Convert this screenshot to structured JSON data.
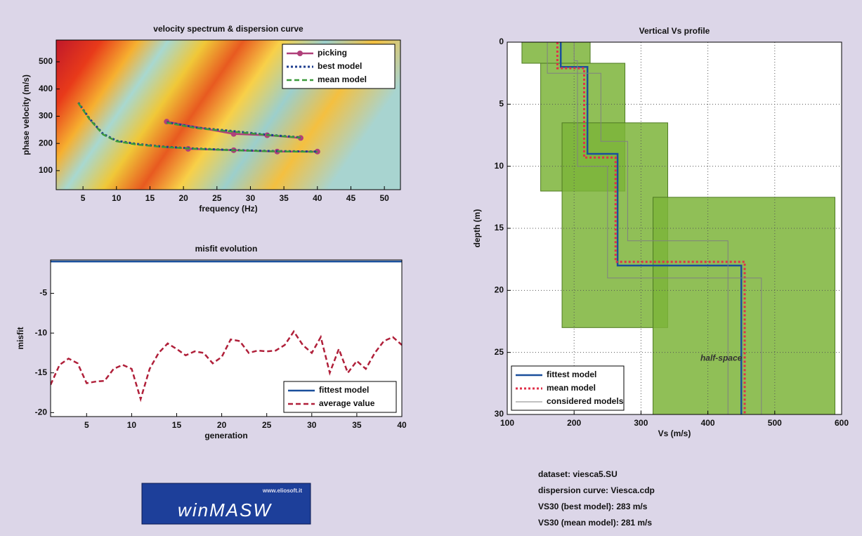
{
  "chart_data": [
    {
      "type": "line",
      "title": "velocity spectrum & dispersion curve",
      "xlabel": "frequency (Hz)",
      "ylabel": "phase velocity (m/s)",
      "xlim": [
        1,
        52.4
      ],
      "xticks": [
        5,
        10,
        15,
        20,
        25,
        30,
        35,
        40,
        45,
        50
      ],
      "ylim": [
        30,
        580
      ],
      "yticks": [
        100,
        200,
        300,
        400,
        500
      ],
      "grid": false,
      "legend": "upper right",
      "series": [
        {
          "name": "picking",
          "color": "#b0407a",
          "linestyle": "solid",
          "marker": "circle",
          "x": [
            17.5,
            27.5,
            32.5,
            37.5,
            null,
            20.7,
            27.5,
            34,
            40
          ],
          "values": [
            280,
            235,
            230,
            220,
            null,
            180,
            175,
            170,
            170
          ]
        },
        {
          "name": "best model",
          "color": "#1f3f8f",
          "linestyle": "dotted",
          "marker": null,
          "x": [
            17.5,
            22,
            27.5,
            32.5,
            37.5,
            null,
            4.3,
            6,
            8,
            10,
            13,
            17,
            21,
            27,
            33,
            40
          ],
          "values": [
            278,
            258,
            245,
            232,
            222,
            null,
            350,
            290,
            235,
            210,
            198,
            188,
            182,
            176,
            172,
            170
          ]
        },
        {
          "name": "mean model",
          "color": "#3a9a3a",
          "linestyle": "dashed",
          "marker": null,
          "x": [
            17.5,
            22,
            27.5,
            32.5,
            37.5,
            null,
            4.3,
            6,
            8,
            10,
            13,
            17,
            21,
            27,
            33,
            40
          ],
          "values": [
            276,
            256,
            243,
            231,
            221,
            null,
            348,
            288,
            233,
            208,
            196,
            187,
            181,
            175,
            171,
            169
          ]
        }
      ]
    },
    {
      "type": "line",
      "title": "misfit evolution",
      "xlabel": "generation",
      "ylabel": "misfit",
      "xlim": [
        1,
        40
      ],
      "xticks": [
        5,
        10,
        15,
        20,
        25,
        30,
        35,
        40
      ],
      "ylim": [
        -20.5,
        -0.8
      ],
      "yticks": [
        -5,
        -10,
        -15,
        -20
      ],
      "grid": false,
      "legend": "lower right",
      "x": [
        1,
        2,
        3,
        4,
        5,
        6,
        7,
        8,
        9,
        10,
        11,
        12,
        13,
        14,
        15,
        16,
        17,
        18,
        19,
        20,
        21,
        22,
        23,
        24,
        25,
        26,
        27,
        28,
        29,
        30,
        31,
        32,
        33,
        34,
        35,
        36,
        37,
        38,
        39,
        40
      ],
      "series": [
        {
          "name": "fittest model",
          "color": "#1a4f9c",
          "linestyle": "solid",
          "marker": null,
          "values": [
            -1,
            -1,
            -1,
            -1,
            -1,
            -1,
            -1,
            -1,
            -1,
            -1,
            -1,
            -1,
            -1,
            -1,
            -1,
            -1,
            -1,
            -1,
            -1,
            -1,
            -1,
            -1,
            -1,
            -1,
            -1,
            -1,
            -1,
            -1,
            -1,
            -1,
            -1,
            -1,
            -1,
            -1,
            -1,
            -1,
            -1,
            -1,
            -1,
            -1
          ]
        },
        {
          "name": "average value",
          "color": "#b0203a",
          "linestyle": "dashed",
          "marker": null,
          "values": [
            -16.5,
            -14,
            -13.2,
            -13.8,
            -16.3,
            -16.1,
            -16,
            -14.5,
            -14,
            -14.5,
            -18.3,
            -14.5,
            -12.5,
            -11.3,
            -12,
            -12.8,
            -12.3,
            -12.5,
            -13.8,
            -13,
            -10.8,
            -11,
            -12.5,
            -12.2,
            -12.3,
            -12.2,
            -11.5,
            -9.8,
            -11.5,
            -12.5,
            -10.5,
            -15,
            -12,
            -15,
            -13.5,
            -14.5,
            -12.5,
            -11,
            -10.5,
            -11.5
          ]
        }
      ]
    },
    {
      "type": "line",
      "title": "Vertical Vs profile",
      "xlabel": "Vs (m/s)",
      "ylabel": "depth (m)",
      "xlim": [
        100,
        600
      ],
      "xticks": [
        100,
        200,
        300,
        400,
        500,
        600
      ],
      "ylim": [
        0,
        30
      ],
      "yticks": [
        0,
        5,
        10,
        15,
        20,
        25,
        30
      ],
      "y_inverted": true,
      "grid": true,
      "legend": "lower left",
      "search_bounds": [
        {
          "vs": [
            122,
            224
          ],
          "depth": [
            0,
            1.7
          ]
        },
        {
          "vs": [
            150,
            276
          ],
          "depth": [
            1.7,
            12
          ]
        },
        {
          "vs": [
            182,
            340
          ],
          "depth": [
            6.5,
            23
          ]
        },
        {
          "vs": [
            318,
            590
          ],
          "depth": [
            12.5,
            30
          ]
        }
      ],
      "annotations": [
        {
          "text": "half-space",
          "x": 420,
          "y": 25.5
        }
      ],
      "series": [
        {
          "name": "fittest model",
          "color": "#1a4f9c",
          "linestyle": "solid",
          "marker": null,
          "x": [
            180,
            180,
            220,
            220,
            265,
            265,
            450,
            450
          ],
          "values": [
            0,
            2,
            2,
            9,
            9,
            18,
            18,
            30
          ]
        },
        {
          "name": "mean model",
          "color": "#e0304a",
          "linestyle": "dotted",
          "marker": null,
          "x": [
            175,
            175,
            215,
            215,
            262,
            262,
            455,
            455
          ],
          "values": [
            0,
            2.1,
            2.1,
            9.3,
            9.3,
            17.7,
            17.7,
            30
          ]
        },
        {
          "name": "considered models",
          "color": "#808080",
          "linestyle": "thin",
          "marker": null,
          "x": [
            160,
            160,
            240,
            240,
            280,
            280,
            430,
            430,
            null,
            200,
            200,
            205,
            205,
            250,
            250,
            480,
            480
          ],
          "values": [
            0,
            2.5,
            2.5,
            8,
            8,
            16,
            16,
            30,
            null,
            0,
            1.5,
            1.5,
            10,
            10,
            19,
            19,
            30
          ]
        }
      ]
    }
  ],
  "info": [
    "dataset: viesca5.SU",
    "dispersion curve: Viesca.cdp",
    "VS30 (best model): 283 m/s",
    "VS30 (mean model): 281 m/s"
  ],
  "logo": {
    "title": "winMASW",
    "url": "www.eliosoft.it"
  }
}
